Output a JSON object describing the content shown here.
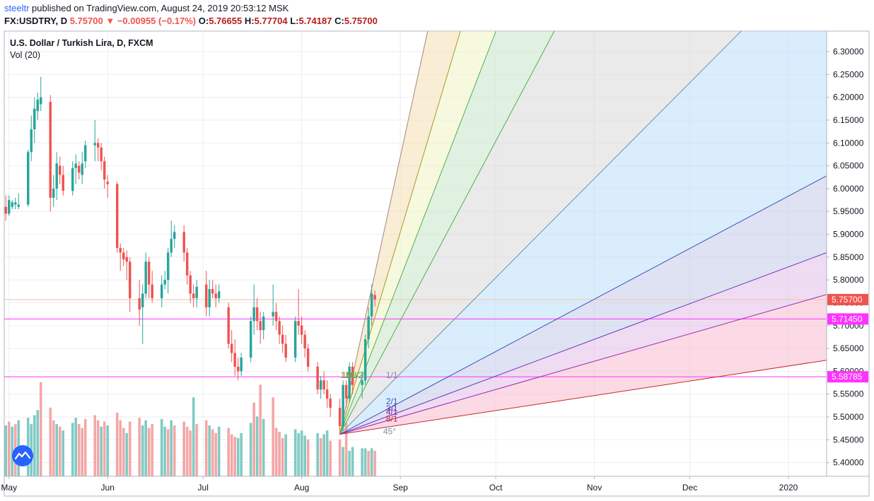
{
  "header": {
    "author": "steeltr",
    "published_text": "published on TradingView.com, August 24, 2019 20:53:12 MSK",
    "symbol": "FX:USDTRY, D",
    "price": "5.75700",
    "change": "−0.00955 (−0.17%)",
    "open_label": "O:",
    "open": "5.76655",
    "high_label": "H:",
    "high": "5.77704",
    "low_label": "L:",
    "low": "5.74187",
    "close_label": "C:",
    "close": "5.75700"
  },
  "legend": {
    "title": "U.S. Dollar / Turkish Lira, D, FXCM",
    "volume": "Vol (20)"
  },
  "colors": {
    "up": "#26a69a",
    "down": "#ef5350",
    "vol_up": "#80cbc4",
    "vol_down": "#f4a7a7",
    "horizontal_line": "#ff33ff",
    "price_line": "#f5c2a8"
  },
  "chart_data": {
    "type": "candlestick",
    "title": "U.S. Dollar / Turkish Lira, D, FXCM",
    "ylim": [
      5.37,
      6.345
    ],
    "y_ticks": [
      "5.40000",
      "5.45000",
      "5.50000",
      "5.55000",
      "5.60000",
      "5.65000",
      "5.70000",
      "5.75000",
      "5.80000",
      "5.85000",
      "5.90000",
      "5.95000",
      "6.00000",
      "6.05000",
      "6.10000",
      "6.15000",
      "6.20000",
      "6.25000",
      "6.30000"
    ],
    "x_ticks": [
      {
        "label": "May",
        "day": 0
      },
      {
        "label": "Jun",
        "day": 31
      },
      {
        "label": "Jul",
        "day": 61
      },
      {
        "label": "Aug",
        "day": 92
      },
      {
        "label": "Sep",
        "day": 123
      },
      {
        "label": "Oct",
        "day": 153
      },
      {
        "label": "Nov",
        "day": 184
      },
      {
        "label": "Dec",
        "day": 214
      },
      {
        "label": "2020",
        "day": 245
      }
    ],
    "x_range_days": [
      -1.5,
      257
    ],
    "candles": [
      [
        -1,
        5.96,
        5.985,
        5.93,
        5.945
      ],
      [
        0,
        5.945,
        5.985,
        5.94,
        5.975
      ],
      [
        1,
        5.96,
        5.975,
        5.955,
        5.97
      ],
      [
        2,
        5.965,
        5.98,
        5.955,
        5.97
      ],
      [
        3,
        5.96,
        5.99,
        5.955,
        5.965
      ],
      [
        6,
        5.965,
        6.085,
        5.96,
        6.08
      ],
      [
        7,
        6.08,
        6.16,
        6.06,
        6.13
      ],
      [
        8,
        6.13,
        6.2,
        6.1,
        6.175
      ],
      [
        9,
        6.17,
        6.21,
        6.15,
        6.195
      ],
      [
        10,
        6.185,
        6.245,
        6.17,
        6.2
      ],
      [
        13,
        6.19,
        6.205,
        5.95,
        5.98
      ],
      [
        14,
        5.98,
        6.03,
        5.96,
        6.0
      ],
      [
        15,
        6.0,
        6.08,
        5.975,
        6.055
      ],
      [
        16,
        6.05,
        6.07,
        6.01,
        6.03
      ],
      [
        17,
        6.03,
        6.05,
        5.985,
        5.995
      ],
      [
        20,
        5.995,
        6.06,
        5.985,
        6.045
      ],
      [
        21,
        6.045,
        6.075,
        6.01,
        6.055
      ],
      [
        22,
        6.05,
        6.06,
        6.02,
        6.035
      ],
      [
        23,
        6.03,
        6.08,
        6.01,
        6.055
      ],
      [
        24,
        6.06,
        6.105,
        6.045,
        6.095
      ],
      [
        27,
        6.095,
        6.15,
        6.06,
        6.1
      ],
      [
        28,
        6.1,
        6.11,
        6.06,
        6.09
      ],
      [
        29,
        6.09,
        6.1,
        6.04,
        6.06
      ],
      [
        30,
        6.06,
        6.07,
        6.0,
        6.02
      ],
      [
        31,
        6.015,
        6.03,
        5.98,
        6.01
      ],
      [
        34,
        6.01,
        6.015,
        5.86,
        5.87
      ],
      [
        35,
        5.87,
        5.88,
        5.82,
        5.86
      ],
      [
        36,
        5.86,
        5.87,
        5.83,
        5.845
      ],
      [
        37,
        5.85,
        5.865,
        5.8,
        5.84
      ],
      [
        38,
        5.84,
        5.85,
        5.73,
        5.76
      ],
      [
        41,
        5.76,
        5.8,
        5.7,
        5.735
      ],
      [
        42,
        5.74,
        5.79,
        5.66,
        5.77
      ],
      [
        43,
        5.77,
        5.86,
        5.76,
        5.84
      ],
      [
        44,
        5.84,
        5.85,
        5.76,
        5.79
      ],
      [
        45,
        5.79,
        5.82,
        5.75,
        5.76
      ],
      [
        48,
        5.76,
        5.81,
        5.74,
        5.79
      ],
      [
        49,
        5.79,
        5.82,
        5.78,
        5.8
      ],
      [
        50,
        5.8,
        5.87,
        5.77,
        5.86
      ],
      [
        51,
        5.86,
        5.93,
        5.85,
        5.89
      ],
      [
        52,
        5.89,
        5.92,
        5.87,
        5.905
      ],
      [
        55,
        5.905,
        5.92,
        5.84,
        5.86
      ],
      [
        56,
        5.86,
        5.87,
        5.79,
        5.81
      ],
      [
        57,
        5.81,
        5.82,
        5.75,
        5.77
      ],
      [
        58,
        5.77,
        5.79,
        5.74,
        5.76
      ],
      [
        59,
        5.76,
        5.8,
        5.74,
        5.785
      ],
      [
        62,
        5.79,
        5.82,
        5.72,
        5.74
      ],
      [
        63,
        5.74,
        5.8,
        5.72,
        5.78
      ],
      [
        64,
        5.78,
        5.8,
        5.76,
        5.77
      ],
      [
        65,
        5.77,
        5.79,
        5.74,
        5.76
      ],
      [
        66,
        5.76,
        5.79,
        5.75,
        5.775
      ],
      [
        69,
        5.74,
        5.75,
        5.65,
        5.66
      ],
      [
        70,
        5.66,
        5.69,
        5.62,
        5.64
      ],
      [
        71,
        5.64,
        5.67,
        5.59,
        5.61
      ],
      [
        72,
        5.61,
        5.63,
        5.58,
        5.6
      ],
      [
        73,
        5.6,
        5.64,
        5.59,
        5.63
      ],
      [
        76,
        5.63,
        5.72,
        5.62,
        5.71
      ],
      [
        77,
        5.71,
        5.79,
        5.68,
        5.74
      ],
      [
        78,
        5.74,
        5.76,
        5.69,
        5.71
      ],
      [
        79,
        5.71,
        5.73,
        5.66,
        5.69
      ],
      [
        80,
        5.69,
        5.73,
        5.67,
        5.72
      ],
      [
        83,
        5.72,
        5.79,
        5.7,
        5.73
      ],
      [
        84,
        5.73,
        5.75,
        5.69,
        5.71
      ],
      [
        85,
        5.71,
        5.72,
        5.66,
        5.68
      ],
      [
        86,
        5.68,
        5.7,
        5.64,
        5.66
      ],
      [
        87,
        5.66,
        5.68,
        5.62,
        5.63
      ],
      [
        90,
        5.63,
        5.72,
        5.62,
        5.71
      ],
      [
        91,
        5.71,
        5.78,
        5.68,
        5.7
      ],
      [
        92,
        5.7,
        5.72,
        5.66,
        5.68
      ],
      [
        93,
        5.68,
        5.69,
        5.63,
        5.65
      ],
      [
        94,
        5.65,
        5.66,
        5.6,
        5.61
      ],
      [
        97,
        5.61,
        5.62,
        5.55,
        5.56
      ],
      [
        98,
        5.56,
        5.59,
        5.54,
        5.58
      ],
      [
        99,
        5.58,
        5.6,
        5.55,
        5.56
      ],
      [
        100,
        5.56,
        5.58,
        5.52,
        5.54
      ],
      [
        101,
        5.54,
        5.55,
        5.5,
        5.52
      ],
      [
        104,
        5.52,
        5.54,
        5.46,
        5.48
      ],
      [
        105,
        5.48,
        5.58,
        5.47,
        5.57
      ],
      [
        106,
        5.57,
        5.58,
        5.52,
        5.54
      ],
      [
        107,
        5.54,
        5.62,
        5.53,
        5.61
      ],
      [
        108,
        5.61,
        5.62,
        5.55,
        5.57
      ],
      [
        111,
        5.57,
        5.6,
        5.54,
        5.58
      ],
      [
        112,
        5.58,
        5.68,
        5.57,
        5.67
      ],
      [
        113,
        5.67,
        5.74,
        5.65,
        5.72
      ],
      [
        114,
        5.72,
        5.79,
        5.7,
        5.77
      ],
      [
        115,
        5.767,
        5.777,
        5.742,
        5.757
      ]
    ],
    "volume": [
      [
        -1,
        0.4,
        "up"
      ],
      [
        0,
        0.43,
        "down"
      ],
      [
        1,
        0.39,
        "up"
      ],
      [
        2,
        0.41,
        "down"
      ],
      [
        3,
        0.44,
        "up"
      ],
      [
        6,
        0.46,
        "up"
      ],
      [
        7,
        0.41,
        "up"
      ],
      [
        8,
        0.48,
        "up"
      ],
      [
        9,
        0.52,
        "up"
      ],
      [
        10,
        0.74,
        "down"
      ],
      [
        13,
        0.54,
        "down"
      ],
      [
        14,
        0.44,
        "down"
      ],
      [
        15,
        0.41,
        "up"
      ],
      [
        16,
        0.39,
        "down"
      ],
      [
        17,
        0.36,
        "up"
      ],
      [
        20,
        0.42,
        "up"
      ],
      [
        21,
        0.46,
        "up"
      ],
      [
        22,
        0.41,
        "down"
      ],
      [
        23,
        0.38,
        "down"
      ],
      [
        24,
        0.45,
        "down"
      ],
      [
        27,
        0.48,
        "down"
      ],
      [
        28,
        0.44,
        "down"
      ],
      [
        29,
        0.39,
        "up"
      ],
      [
        30,
        0.43,
        "down"
      ],
      [
        31,
        0.4,
        "up"
      ],
      [
        34,
        0.5,
        "down"
      ],
      [
        35,
        0.44,
        "down"
      ],
      [
        36,
        0.38,
        "down"
      ],
      [
        37,
        0.34,
        "up"
      ],
      [
        38,
        0.43,
        "down"
      ],
      [
        41,
        0.46,
        "down"
      ],
      [
        42,
        0.4,
        "up"
      ],
      [
        43,
        0.44,
        "up"
      ],
      [
        44,
        0.38,
        "down"
      ],
      [
        45,
        0.41,
        "down"
      ],
      [
        48,
        0.45,
        "up"
      ],
      [
        49,
        0.39,
        "up"
      ],
      [
        50,
        0.37,
        "down"
      ],
      [
        51,
        0.44,
        "up"
      ],
      [
        52,
        0.4,
        "down"
      ],
      [
        55,
        0.43,
        "down"
      ],
      [
        56,
        0.39,
        "down"
      ],
      [
        57,
        0.36,
        "down"
      ],
      [
        58,
        0.62,
        "up"
      ],
      [
        59,
        0.41,
        "down"
      ],
      [
        62,
        0.44,
        "down"
      ],
      [
        63,
        0.4,
        "up"
      ],
      [
        64,
        0.37,
        "down"
      ],
      [
        65,
        0.34,
        "down"
      ],
      [
        66,
        0.39,
        "up"
      ],
      [
        69,
        0.38,
        "down"
      ],
      [
        70,
        0.33,
        "down"
      ],
      [
        71,
        0.31,
        "down"
      ],
      [
        72,
        0.3,
        "up"
      ],
      [
        73,
        0.34,
        "up"
      ],
      [
        76,
        0.42,
        "up"
      ],
      [
        77,
        0.58,
        "down"
      ],
      [
        78,
        0.47,
        "up"
      ],
      [
        79,
        0.72,
        "down"
      ],
      [
        80,
        0.45,
        "up"
      ],
      [
        83,
        0.62,
        "down"
      ],
      [
        84,
        0.38,
        "down"
      ],
      [
        85,
        0.35,
        "down"
      ],
      [
        86,
        0.3,
        "down"
      ],
      [
        87,
        0.33,
        "up"
      ],
      [
        90,
        0.37,
        "up"
      ],
      [
        91,
        0.34,
        "up"
      ],
      [
        92,
        0.36,
        "up"
      ],
      [
        93,
        0.32,
        "up"
      ],
      [
        94,
        0.29,
        "down"
      ],
      [
        97,
        0.34,
        "up"
      ],
      [
        98,
        0.3,
        "down"
      ],
      [
        99,
        0.33,
        "up"
      ],
      [
        100,
        0.36,
        "up"
      ],
      [
        101,
        0.28,
        "down"
      ],
      [
        104,
        0.29,
        "down"
      ],
      [
        105,
        0.23,
        "up"
      ],
      [
        106,
        0.42,
        "down"
      ],
      [
        107,
        0.2,
        "up"
      ],
      [
        108,
        0.23,
        "up"
      ],
      [
        111,
        0.22,
        "up"
      ],
      [
        112,
        0.22,
        "up"
      ],
      [
        113,
        0.2,
        "down"
      ],
      [
        114,
        0.22,
        "up"
      ],
      [
        115,
        0.2,
        "down"
      ]
    ],
    "gann_fan": {
      "origin": {
        "day": 104,
        "price": 5.462
      },
      "lines": [
        {
          "label": "1/8",
          "slope": 0.032,
          "color": "#a1887f",
          "fill": "#f5deb3"
        },
        {
          "label": "1/4",
          "slope": 0.0233,
          "color": "#9e9d24",
          "fill": "#f0f4c3"
        },
        {
          "label": "1/3",
          "slope": 0.018,
          "color": "#4caf50",
          "fill": "#c8e6c9"
        },
        {
          "label": "1/2",
          "slope": 0.0131,
          "color": "#4caf50",
          "fill": "#d9d9d9"
        },
        {
          "label": "1/1",
          "slope": 0.007,
          "color": "#78909c",
          "fill": "#bbdefb"
        },
        {
          "label": "2/1",
          "slope": 0.0037,
          "color": "#3f51b5",
          "fill": "#c5cae9"
        },
        {
          "label": "3/1",
          "slope": 0.0026,
          "color": "#673ab7",
          "fill": "#e1bee7"
        },
        {
          "label": "4/1",
          "slope": 0.002,
          "color": "#9c27b0",
          "fill": "#f8bbd0"
        },
        {
          "label": "8/1",
          "slope": 0.00106,
          "color": "#c62828",
          "fill": "#f4c7c3"
        }
      ],
      "angle_label": "45°"
    },
    "horizontal_lines": [
      5.7145,
      5.58785
    ],
    "last_price": 5.757,
    "price_labels": [
      {
        "value": 5.757,
        "text": "5.75700",
        "bg": "#ef5350"
      },
      {
        "value": 5.7145,
        "text": "5.71450",
        "bg": "#ff33ff"
      },
      {
        "value": 5.58785,
        "text": "5.58785",
        "bg": "#ff33ff"
      }
    ]
  }
}
